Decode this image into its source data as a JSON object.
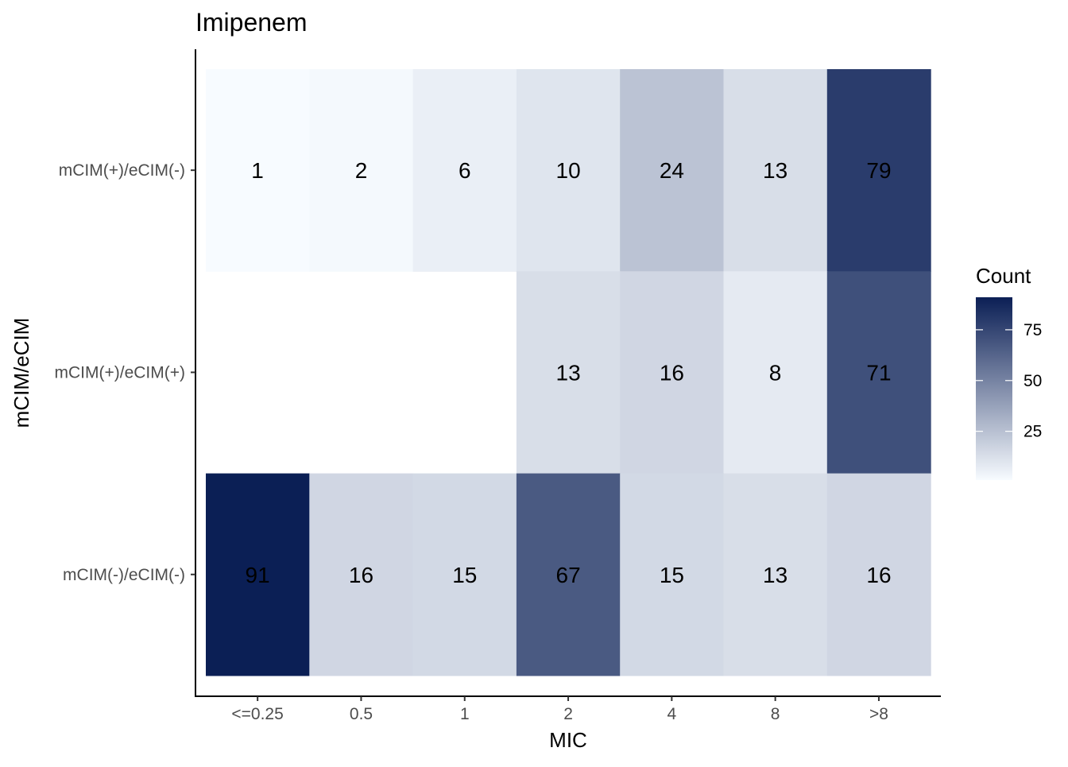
{
  "chart_data": {
    "type": "heatmap",
    "title": "Imipenem",
    "xlabel": "MIC",
    "ylabel": "mCIM/eCIM",
    "x_categories": [
      "<=0.25",
      "0.5",
      "1",
      "2",
      "4",
      "8",
      ">8"
    ],
    "y_categories": [
      "mCIM(+)/eCIM(-)",
      "mCIM(+)/eCIM(+)",
      "mCIM(-)/eCIM(-)"
    ],
    "values": [
      [
        1,
        2,
        6,
        10,
        24,
        13,
        79
      ],
      [
        null,
        null,
        null,
        13,
        16,
        8,
        71
      ],
      [
        91,
        16,
        15,
        67,
        15,
        13,
        16
      ]
    ],
    "legend": {
      "title": "Count",
      "ticks": [
        25,
        50,
        75
      ],
      "range": [
        1,
        91
      ],
      "color_low": "#f7fbff",
      "color_high": "#0b1f55",
      "placement": "right"
    },
    "grid": false
  }
}
